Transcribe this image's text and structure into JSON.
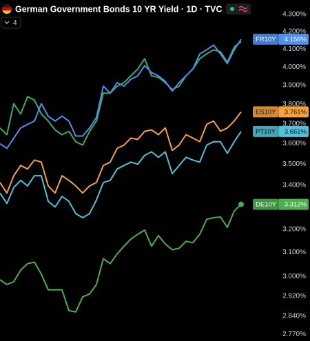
{
  "chart_data": {
    "type": "line",
    "title": "German Government Bonds 10 YR Yield · 1D · TVC",
    "indicator_count": "4",
    "log_scale": true,
    "ylim": [
      2.745,
      4.386
    ],
    "yticks": [
      {
        "value": 4.3,
        "label": "4.300%"
      },
      {
        "value": 4.2,
        "label": "4.200%"
      },
      {
        "value": 4.1,
        "label": "4.100%"
      },
      {
        "value": 4.0,
        "label": "4.000%"
      },
      {
        "value": 3.9,
        "label": "3.900%"
      },
      {
        "value": 3.8,
        "label": "3.800%"
      },
      {
        "value": 3.7,
        "label": "3.700%"
      },
      {
        "value": 3.6,
        "label": "3.600%"
      },
      {
        "value": 3.5,
        "label": "3.500%"
      },
      {
        "value": 3.4,
        "label": "3.400%"
      },
      {
        "value": 3.2,
        "label": "3.200%"
      },
      {
        "value": 3.1,
        "label": "3.100%"
      },
      {
        "value": 3.0,
        "label": "3.000%"
      },
      {
        "value": 2.92,
        "label": "2.920%"
      },
      {
        "value": 2.84,
        "label": "2.840%"
      },
      {
        "value": 2.77,
        "label": "2.770%"
      }
    ],
    "series": [
      {
        "color": "#3fae5c",
        "values": [
          3.679,
          3.645,
          3.804,
          3.75,
          3.841,
          3.822,
          3.75,
          3.714,
          3.669,
          3.645,
          3.662,
          3.61,
          3.593,
          3.662,
          3.714,
          3.859,
          3.859,
          3.896,
          3.915,
          3.952,
          3.989,
          4.046,
          3.952,
          3.944,
          3.915,
          3.878,
          3.896,
          3.952,
          3.989,
          4.046,
          4.073,
          4.096,
          4.085,
          4.027,
          4.112,
          4.142
        ]
      },
      {
        "name": "FR10Y",
        "color": "#4f8ff0",
        "values": [
          3.6,
          3.577,
          3.628,
          3.679,
          3.697,
          3.714,
          3.804,
          3.739,
          3.714,
          3.739,
          3.714,
          3.638,
          3.638,
          3.679,
          3.732,
          3.896,
          3.859,
          3.915,
          3.896,
          3.933,
          3.952,
          4.008,
          3.97,
          3.952,
          3.922,
          3.87,
          3.915,
          3.952,
          3.989,
          4.073,
          4.096,
          4.123,
          4.073,
          4.019,
          4.096,
          4.156
        ],
        "value_labels": [
          null,
          null,
          null,
          null,
          null,
          null,
          null,
          null,
          null,
          null,
          null,
          null,
          null,
          null,
          null,
          null,
          null,
          null,
          null,
          null,
          null,
          null,
          null,
          null,
          null,
          null,
          null,
          null,
          null,
          null,
          null,
          null,
          null,
          null,
          null,
          "4.156%"
        ]
      },
      {
        "name": "ES10Y",
        "color": "#f7a33c",
        "values": [
          3.413,
          3.364,
          3.445,
          3.494,
          3.477,
          3.52,
          3.51,
          3.397,
          3.364,
          3.445,
          3.423,
          3.397,
          3.364,
          3.397,
          3.413,
          3.494,
          3.51,
          3.577,
          3.593,
          3.628,
          3.621,
          3.662,
          3.669,
          3.645,
          3.679,
          3.567,
          3.593,
          3.645,
          3.628,
          3.61,
          3.697,
          3.714,
          3.662,
          3.679,
          3.714,
          3.761
        ],
        "value_labels": [
          null,
          null,
          null,
          null,
          null,
          null,
          null,
          null,
          null,
          null,
          null,
          null,
          null,
          null,
          null,
          null,
          null,
          null,
          null,
          null,
          null,
          null,
          null,
          null,
          null,
          null,
          null,
          null,
          null,
          null,
          null,
          null,
          null,
          null,
          null,
          "3.761%"
        ]
      },
      {
        "name": "PT10Y",
        "color": "#4fc3d9",
        "values": [
          3.364,
          3.316,
          3.39,
          3.423,
          3.397,
          3.445,
          3.445,
          3.326,
          3.3,
          3.348,
          3.326,
          3.27,
          3.252,
          3.27,
          3.332,
          3.413,
          3.423,
          3.477,
          3.494,
          3.51,
          3.5,
          3.543,
          3.56,
          3.533,
          3.56,
          3.455,
          3.494,
          3.533,
          3.52,
          3.51,
          3.593,
          3.61,
          3.61,
          3.553,
          3.61,
          3.661
        ],
        "value_labels": [
          null,
          null,
          null,
          null,
          null,
          null,
          null,
          null,
          null,
          null,
          null,
          null,
          null,
          null,
          null,
          null,
          null,
          null,
          null,
          null,
          null,
          null,
          null,
          null,
          null,
          null,
          null,
          null,
          null,
          null,
          null,
          null,
          null,
          null,
          null,
          "3.661%"
        ]
      },
      {
        "name": "DE10Y",
        "color": "#4caf50",
        "values": [
          2.986,
          2.967,
          2.978,
          3.026,
          3.053,
          3.059,
          3.009,
          2.945,
          2.945,
          2.945,
          2.862,
          2.857,
          2.917,
          2.928,
          2.967,
          3.074,
          3.053,
          3.094,
          3.127,
          3.158,
          3.179,
          3.197,
          3.127,
          3.173,
          3.136,
          3.112,
          3.118,
          3.148,
          3.142,
          3.179,
          3.245,
          3.252,
          3.255,
          3.209,
          3.282,
          3.312
        ],
        "value_labels": [
          null,
          null,
          null,
          null,
          null,
          null,
          null,
          null,
          null,
          null,
          null,
          null,
          null,
          null,
          null,
          null,
          null,
          null,
          null,
          null,
          null,
          null,
          null,
          null,
          null,
          null,
          null,
          null,
          null,
          null,
          null,
          null,
          null,
          null,
          null,
          "3.312%"
        ]
      }
    ]
  }
}
